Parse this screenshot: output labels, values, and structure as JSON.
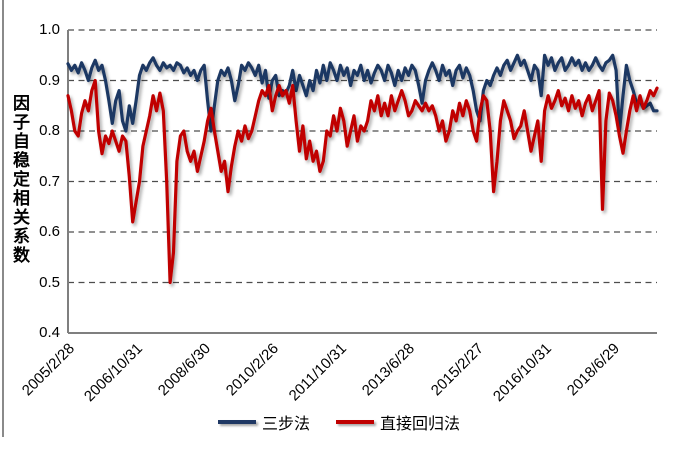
{
  "chart_data": {
    "type": "line",
    "title": "",
    "xlabel": "",
    "ylabel": "因子自稳定相关系数",
    "ylim": [
      0.4,
      1.0
    ],
    "y_ticks": [
      "1.0",
      "0.9",
      "0.8",
      "0.7",
      "0.6",
      "0.5",
      "0.4"
    ],
    "grid": "horizontal-dashed",
    "legend_position": "bottom-center",
    "x_axis_type": "monthly observations starting 2005/2/28, labels every 20 months",
    "x_tick_labels": [
      "2005/2/28",
      "2006/10/31",
      "2008/6/30",
      "2010/2/26",
      "2011/10/31",
      "2013/6/28",
      "2015/2/27",
      "2016/10/31",
      "2018/6/29"
    ],
    "x_tick_indices": [
      0,
      20,
      40,
      60,
      80,
      100,
      120,
      140,
      160
    ],
    "axis_color": "#7f7f7f",
    "gridline_color": "#4d4d4d",
    "series": [
      {
        "name": "三步法",
        "color": "#1f3864",
        "values": [
          0.933,
          0.92,
          0.93,
          0.915,
          0.935,
          0.92,
          0.9,
          0.925,
          0.94,
          0.92,
          0.93,
          0.9,
          0.86,
          0.815,
          0.86,
          0.88,
          0.82,
          0.8,
          0.85,
          0.815,
          0.86,
          0.91,
          0.93,
          0.92,
          0.935,
          0.945,
          0.93,
          0.92,
          0.935,
          0.925,
          0.93,
          0.92,
          0.935,
          0.93,
          0.915,
          0.925,
          0.91,
          0.92,
          0.9,
          0.92,
          0.93,
          0.86,
          0.8,
          0.85,
          0.9,
          0.92,
          0.91,
          0.925,
          0.9,
          0.86,
          0.89,
          0.93,
          0.92,
          0.935,
          0.925,
          0.91,
          0.93,
          0.895,
          0.92,
          0.865,
          0.9,
          0.91,
          0.87,
          0.88,
          0.875,
          0.89,
          0.92,
          0.88,
          0.91,
          0.89,
          0.87,
          0.9,
          0.88,
          0.92,
          0.895,
          0.93,
          0.9,
          0.935,
          0.92,
          0.9,
          0.93,
          0.91,
          0.925,
          0.89,
          0.92,
          0.91,
          0.93,
          0.9,
          0.92,
          0.895,
          0.915,
          0.93,
          0.92,
          0.9,
          0.93,
          0.915,
          0.89,
          0.92,
          0.9,
          0.925,
          0.91,
          0.93,
          0.92,
          0.89,
          0.855,
          0.9,
          0.92,
          0.935,
          0.92,
          0.9,
          0.93,
          0.91,
          0.92,
          0.89,
          0.92,
          0.93,
          0.905,
          0.925,
          0.91,
          0.88,
          0.84,
          0.82,
          0.88,
          0.9,
          0.89,
          0.91,
          0.925,
          0.91,
          0.93,
          0.94,
          0.92,
          0.935,
          0.95,
          0.93,
          0.94,
          0.92,
          0.9,
          0.93,
          0.92,
          0.87,
          0.95,
          0.93,
          0.945,
          0.92,
          0.935,
          0.945,
          0.92,
          0.93,
          0.945,
          0.93,
          0.94,
          0.92,
          0.935,
          0.92,
          0.93,
          0.945,
          0.93,
          0.92,
          0.935,
          0.94,
          0.95,
          0.92,
          0.8,
          0.87,
          0.93,
          0.9,
          0.88,
          0.855,
          0.86,
          0.845,
          0.85,
          0.855,
          0.84,
          0.84
        ]
      },
      {
        "name": "直接回归法",
        "color": "#c00000",
        "values": [
          0.87,
          0.84,
          0.8,
          0.79,
          0.835,
          0.86,
          0.84,
          0.88,
          0.9,
          0.8,
          0.755,
          0.79,
          0.775,
          0.8,
          0.78,
          0.76,
          0.79,
          0.78,
          0.71,
          0.62,
          0.66,
          0.7,
          0.77,
          0.8,
          0.83,
          0.87,
          0.84,
          0.875,
          0.84,
          0.7,
          0.5,
          0.56,
          0.74,
          0.79,
          0.8,
          0.76,
          0.74,
          0.76,
          0.72,
          0.75,
          0.78,
          0.82,
          0.845,
          0.8,
          0.76,
          0.72,
          0.74,
          0.68,
          0.73,
          0.77,
          0.8,
          0.78,
          0.81,
          0.785,
          0.8,
          0.83,
          0.86,
          0.88,
          0.87,
          0.89,
          0.84,
          0.87,
          0.89,
          0.87,
          0.88,
          0.855,
          0.89,
          0.82,
          0.76,
          0.81,
          0.745,
          0.78,
          0.74,
          0.76,
          0.72,
          0.74,
          0.8,
          0.79,
          0.83,
          0.8,
          0.845,
          0.82,
          0.77,
          0.8,
          0.83,
          0.78,
          0.81,
          0.8,
          0.82,
          0.86,
          0.84,
          0.87,
          0.83,
          0.855,
          0.83,
          0.87,
          0.84,
          0.86,
          0.88,
          0.86,
          0.83,
          0.84,
          0.86,
          0.85,
          0.84,
          0.855,
          0.84,
          0.85,
          0.83,
          0.8,
          0.82,
          0.78,
          0.8,
          0.84,
          0.82,
          0.855,
          0.83,
          0.86,
          0.84,
          0.8,
          0.78,
          0.84,
          0.87,
          0.86,
          0.8,
          0.68,
          0.74,
          0.82,
          0.86,
          0.84,
          0.82,
          0.785,
          0.8,
          0.81,
          0.84,
          0.8,
          0.76,
          0.79,
          0.82,
          0.74,
          0.84,
          0.87,
          0.845,
          0.86,
          0.88,
          0.85,
          0.865,
          0.84,
          0.87,
          0.845,
          0.86,
          0.83,
          0.855,
          0.87,
          0.84,
          0.86,
          0.88,
          0.645,
          0.82,
          0.875,
          0.86,
          0.83,
          0.79,
          0.756,
          0.8,
          0.84,
          0.87,
          0.84,
          0.87,
          0.845,
          0.86,
          0.88,
          0.87,
          0.885
        ]
      }
    ]
  }
}
